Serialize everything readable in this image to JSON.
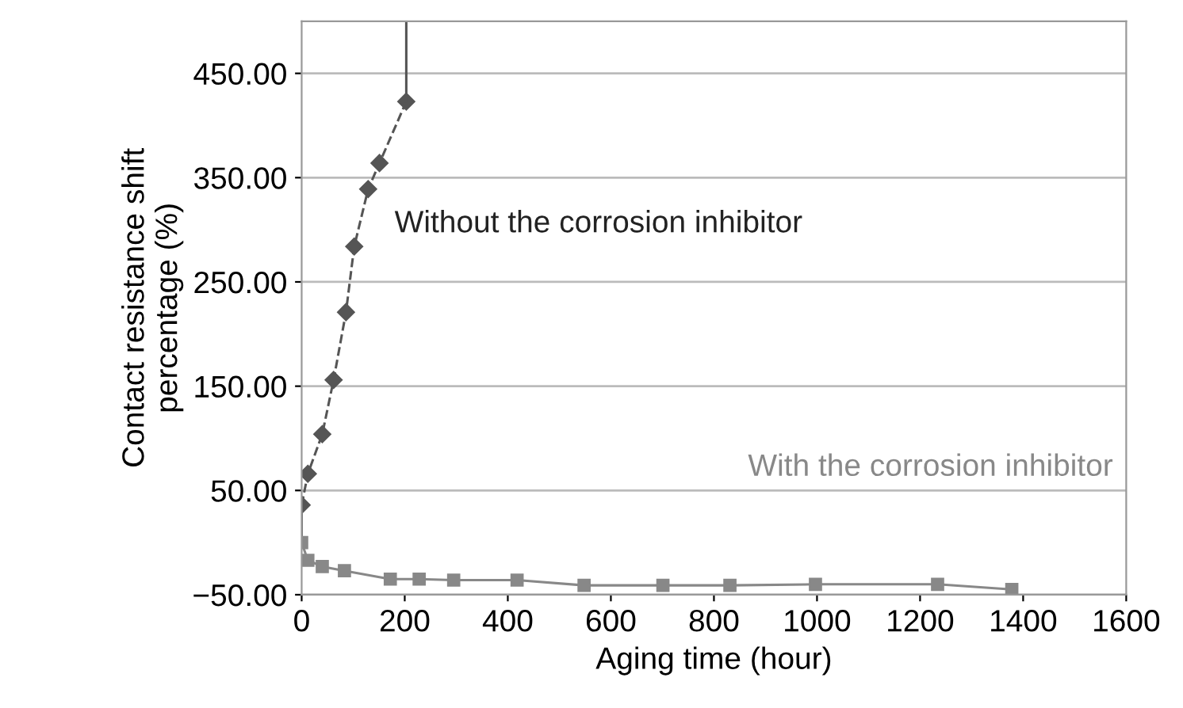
{
  "chart_data": {
    "type": "line",
    "xlabel": "Aging time (hour)",
    "ylabel": "Contact resistance shift\npercentage (%)",
    "xlim": [
      0,
      1600
    ],
    "xticks": [
      0,
      200,
      400,
      600,
      800,
      1000,
      1200,
      1400,
      1600
    ],
    "ylim": [
      -50,
      500
    ],
    "yticks": [
      {
        "value": -50,
        "label": "−50.00"
      },
      {
        "value": 50,
        "label": "50.00"
      },
      {
        "value": 150,
        "label": "150.00"
      },
      {
        "value": 250,
        "label": "250.00"
      },
      {
        "value": 350,
        "label": "350.00"
      },
      {
        "value": 450,
        "label": "450.00"
      }
    ],
    "grid": "y",
    "legend": false,
    "series": [
      {
        "name": "Without the corrosion inhibitor",
        "color": "#555555",
        "marker": "diamond",
        "line_style": "dashed",
        "x": [
          0,
          12,
          40,
          62,
          86,
          102,
          129,
          151,
          203
        ],
        "values": [
          36,
          66,
          104,
          156,
          221,
          284,
          339,
          364,
          423
        ]
      },
      {
        "color": "#555555",
        "marker": "none",
        "line_style": "solid",
        "x": [
          203,
          203
        ],
        "values": [
          423,
          500
        ]
      },
      {
        "color": "#555555",
        "marker": "none",
        "line_style": "solid",
        "x": [
          0,
          0
        ],
        "values": [
          0,
          36
        ]
      },
      {
        "name": "With the corrosion inhibitor",
        "color": "#888888",
        "marker": "square",
        "line_style": "solid",
        "x": [
          0,
          12,
          40,
          83,
          172,
          228,
          295,
          418,
          548,
          701,
          831,
          997,
          1234,
          1378
        ],
        "values": [
          0,
          -17,
          -23,
          -27,
          -35,
          -35,
          -36,
          -36,
          -41,
          -41,
          -41,
          -40,
          -40,
          -45
        ]
      }
    ]
  }
}
